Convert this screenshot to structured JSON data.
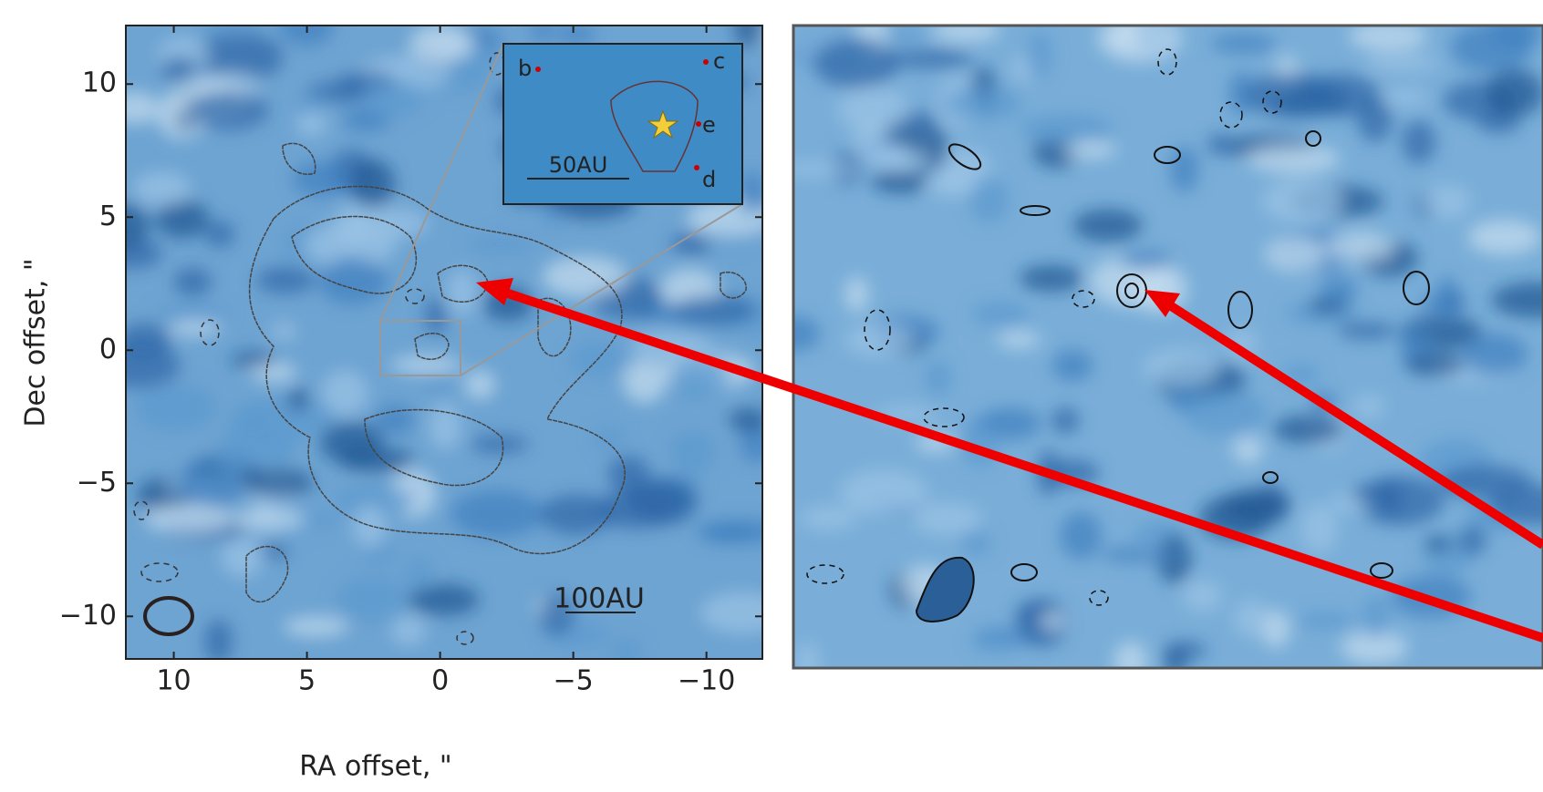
{
  "left_panel": {
    "x_label": "RA offset, \"",
    "y_label": "Dec offset, \"",
    "xlim": [
      11.8,
      -12.1
    ],
    "ylim": [
      -11.6,
      12.2
    ],
    "xticks": [
      10,
      5,
      0,
      {
        "value": -5,
        "label": "−5"
      },
      {
        "value": -10,
        "label": "−10"
      }
    ],
    "yticks": [
      10,
      5,
      0,
      {
        "value": -5,
        "label": "−5"
      },
      {
        "value": -10,
        "label": "−10"
      }
    ],
    "scale_bar": "100AU",
    "inset": {
      "labels": [
        "b",
        "c",
        "e",
        "d"
      ],
      "scale_bar": "50AU"
    }
  }
}
